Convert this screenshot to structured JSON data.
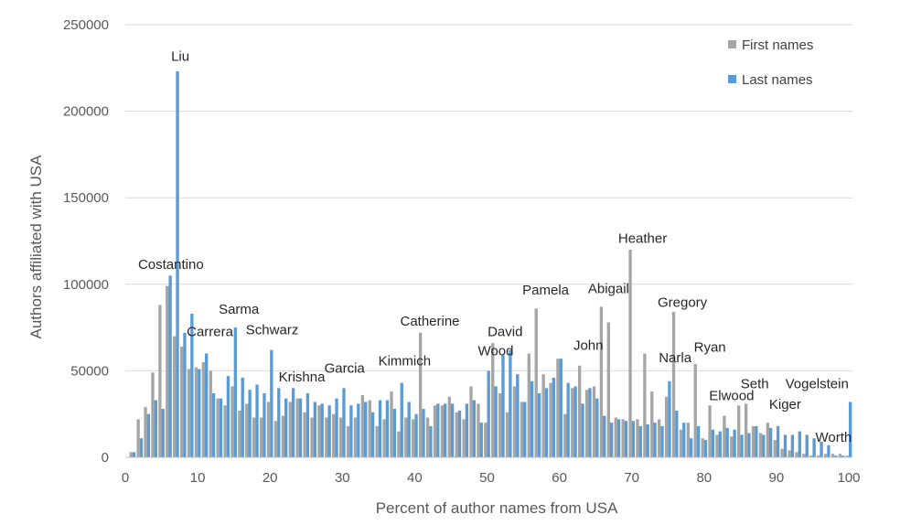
{
  "chart_data": {
    "type": "bar",
    "title": "",
    "xlabel": "Percent of author names from USA",
    "ylabel": "Authors affiliated with USA",
    "xlim": [
      0,
      100
    ],
    "ylim": [
      0,
      250000
    ],
    "x_ticks": [
      0,
      10,
      20,
      30,
      40,
      50,
      60,
      70,
      80,
      90,
      100
    ],
    "y_ticks": [
      0,
      50000,
      100000,
      150000,
      200000,
      250000
    ],
    "grid": "horizontal",
    "legend_position": "top-right",
    "colors": {
      "first": "#a5a5a5",
      "last": "#5b9bd5"
    },
    "series": [
      {
        "name": "First names",
        "x": [
          1,
          2,
          3,
          4,
          5,
          6,
          7,
          8,
          9,
          10,
          11,
          12,
          13,
          14,
          15,
          16,
          17,
          18,
          19,
          20,
          21,
          22,
          23,
          24,
          25,
          26,
          27,
          28,
          29,
          30,
          31,
          32,
          33,
          34,
          35,
          36,
          37,
          38,
          39,
          40,
          41,
          42,
          43,
          44,
          45,
          46,
          47,
          48,
          49,
          50,
          51,
          52,
          53,
          54,
          55,
          56,
          57,
          58,
          59,
          60,
          61,
          62,
          63,
          64,
          65,
          66,
          67,
          68,
          69,
          70,
          71,
          72,
          73,
          74,
          75,
          76,
          77,
          78,
          79,
          80,
          81,
          82,
          83,
          84,
          85,
          86,
          87,
          88,
          89,
          90,
          91,
          92,
          93,
          94,
          95,
          96,
          97,
          98,
          99,
          100
        ],
        "values": [
          3000,
          22000,
          29000,
          49000,
          88000,
          99000,
          70000,
          64000,
          51000,
          52000,
          55000,
          50000,
          34000,
          30000,
          41000,
          27000,
          31000,
          23000,
          23000,
          32000,
          21000,
          24000,
          32000,
          34000,
          26000,
          23000,
          30000,
          23000,
          25000,
          23000,
          18000,
          23000,
          36000,
          33000,
          18000,
          22000,
          38000,
          15000,
          23000,
          22000,
          72000,
          23000,
          30000,
          30000,
          35000,
          26000,
          22000,
          41000,
          31000,
          20000,
          66000,
          37000,
          26000,
          41000,
          32000,
          60000,
          86000,
          48000,
          43000,
          57000,
          25000,
          40000,
          53000,
          39000,
          41000,
          87000,
          78000,
          23000,
          22000,
          120000,
          22000,
          60000,
          38000,
          22000,
          35000,
          84000,
          16000,
          20000,
          54000,
          11000,
          30000,
          13000,
          24000,
          12000,
          30000,
          31000,
          18000,
          14000,
          20000,
          10000,
          5000,
          4000,
          3000,
          2000,
          1000,
          1000,
          2000,
          2000,
          2000,
          1000
        ]
      },
      {
        "name": "Last names",
        "x": [
          1,
          2,
          3,
          4,
          5,
          6,
          7,
          8,
          9,
          10,
          11,
          12,
          13,
          14,
          15,
          16,
          17,
          18,
          19,
          20,
          21,
          22,
          23,
          24,
          25,
          26,
          27,
          28,
          29,
          30,
          31,
          32,
          33,
          34,
          35,
          36,
          37,
          38,
          39,
          40,
          41,
          42,
          43,
          44,
          45,
          46,
          47,
          48,
          49,
          50,
          51,
          52,
          53,
          54,
          55,
          56,
          57,
          58,
          59,
          60,
          61,
          62,
          63,
          64,
          65,
          66,
          67,
          68,
          69,
          70,
          71,
          72,
          73,
          74,
          75,
          76,
          77,
          78,
          79,
          80,
          81,
          82,
          83,
          84,
          85,
          86,
          87,
          88,
          89,
          90,
          91,
          92,
          93,
          94,
          95,
          96,
          97,
          98,
          99,
          100
        ],
        "values": [
          3000,
          11000,
          25000,
          33000,
          28000,
          105000,
          223000,
          72000,
          83000,
          51000,
          60000,
          37000,
          34000,
          47000,
          75000,
          46000,
          39000,
          42000,
          37000,
          62000,
          40000,
          34000,
          40000,
          34000,
          37000,
          32000,
          31000,
          30000,
          34000,
          40000,
          30000,
          31000,
          32000,
          26000,
          33000,
          33000,
          28000,
          43000,
          32000,
          25000,
          28000,
          18000,
          31000,
          31000,
          31000,
          27000,
          31000,
          33000,
          20000,
          50000,
          41000,
          59000,
          62000,
          48000,
          32000,
          44000,
          37000,
          40000,
          46000,
          57000,
          43000,
          41000,
          31000,
          40000,
          34000,
          24000,
          20000,
          22000,
          21000,
          21000,
          18000,
          19000,
          20000,
          18000,
          44000,
          27000,
          20000,
          11000,
          18000,
          10000,
          16000,
          15000,
          17000,
          16000,
          13000,
          14000,
          18000,
          13000,
          17000,
          18000,
          13000,
          13000,
          15000,
          13000,
          11000,
          9000,
          7000,
          1000,
          1000,
          32000
        ]
      }
    ],
    "annotations": [
      {
        "text": "Liu",
        "x": 7.6,
        "y": 229000
      },
      {
        "text": "Costantino",
        "x": 6.3,
        "y": 109000
      },
      {
        "text": "Carrera",
        "x": 11.7,
        "y": 70000
      },
      {
        "text": "Sarma",
        "x": 15.7,
        "y": 83000
      },
      {
        "text": "Schwarz",
        "x": 20.3,
        "y": 71000
      },
      {
        "text": "Krishna",
        "x": 24.4,
        "y": 44000
      },
      {
        "text": "Garcia",
        "x": 30.3,
        "y": 49000
      },
      {
        "text": "Kimmich",
        "x": 38.6,
        "y": 53000
      },
      {
        "text": "Catherine",
        "x": 42.1,
        "y": 76000
      },
      {
        "text": "David",
        "x": 52.5,
        "y": 70000
      },
      {
        "text": "Wood",
        "x": 51.2,
        "y": 59000
      },
      {
        "text": "Pamela",
        "x": 58.1,
        "y": 94000
      },
      {
        "text": "John",
        "x": 64.0,
        "y": 62000
      },
      {
        "text": "Abigail",
        "x": 66.8,
        "y": 95000
      },
      {
        "text": "Heather",
        "x": 71.5,
        "y": 124000
      },
      {
        "text": "Gregory",
        "x": 77.0,
        "y": 87000
      },
      {
        "text": "Narla",
        "x": 76.0,
        "y": 55000
      },
      {
        "text": "Ryan",
        "x": 80.8,
        "y": 61000
      },
      {
        "text": "Elwood",
        "x": 83.8,
        "y": 33000
      },
      {
        "text": "Seth",
        "x": 87.0,
        "y": 40000
      },
      {
        "text": "Kiger",
        "x": 91.2,
        "y": 28000
      },
      {
        "text": "Vogelstein",
        "x": 95.6,
        "y": 40000
      },
      {
        "text": "Worth",
        "x": 97.9,
        "y": 9000
      }
    ]
  }
}
